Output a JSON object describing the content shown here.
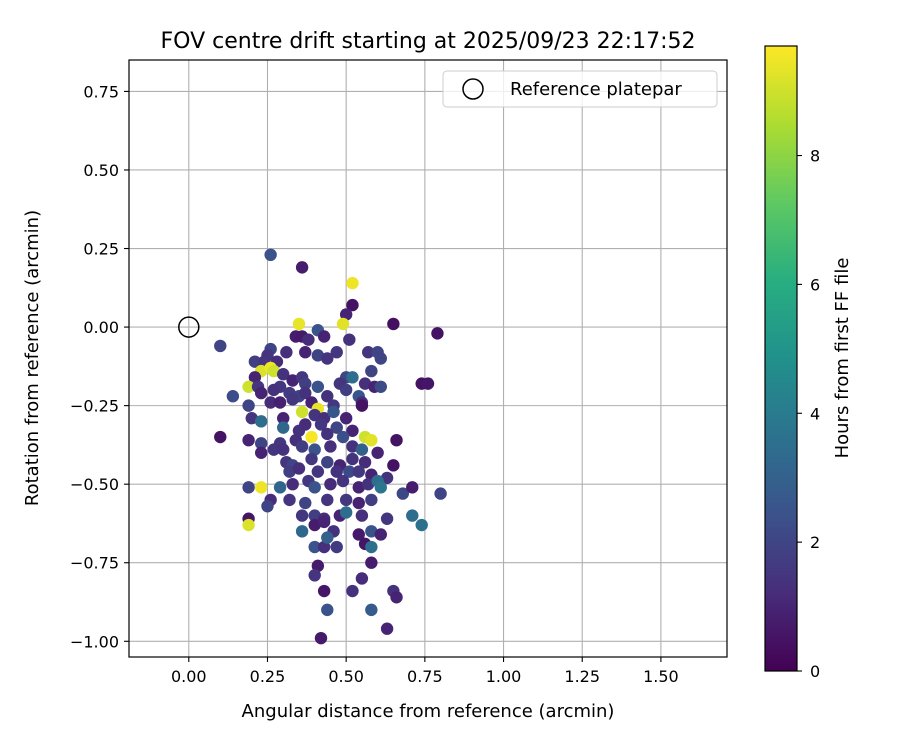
{
  "chart_data": {
    "type": "scatter",
    "title": "FOV centre drift starting at 2025/09/23 22:17:52",
    "xlabel": "Angular distance from reference (arcmin)",
    "ylabel": "Rotation from reference (arcmin)",
    "xlim": [
      -0.19,
      1.71
    ],
    "ylim": [
      -1.05,
      0.85
    ],
    "xticks": [
      0.0,
      0.25,
      0.5,
      0.75,
      1.0,
      1.25,
      1.5
    ],
    "xtick_labels": [
      "0.00",
      "0.25",
      "0.50",
      "0.75",
      "1.00",
      "1.25",
      "1.50"
    ],
    "yticks": [
      0.75,
      0.5,
      0.25,
      0.0,
      -0.25,
      -0.5,
      -0.75,
      -1.0
    ],
    "ytick_labels": [
      "0.75",
      "0.50",
      "0.25",
      "0.00",
      "−0.25",
      "−0.50",
      "−0.75",
      "−1.00"
    ],
    "grid": true,
    "legend": {
      "position": "top-right",
      "entries": [
        {
          "label": "Reference platepar",
          "marker": "open-circle"
        }
      ]
    },
    "reference_point": {
      "x": 0.0,
      "y": 0.0
    },
    "colorbar": {
      "label": "Hours from first FF file",
      "range": [
        0,
        9.7
      ],
      "ticks": [
        0,
        2,
        4,
        6,
        8
      ],
      "tick_labels": [
        "0",
        "2",
        "4",
        "6",
        "8"
      ],
      "colormap": "viridis"
    },
    "points": [
      [
        0.26,
        0.23,
        2.5
      ],
      [
        0.36,
        0.19,
        0.8
      ],
      [
        0.52,
        0.14,
        9.5
      ],
      [
        0.52,
        0.07,
        0.5
      ],
      [
        0.5,
        0.04,
        1.0
      ],
      [
        0.35,
        0.01,
        9.4
      ],
      [
        0.49,
        0.01,
        9.3
      ],
      [
        0.65,
        0.01,
        0.4
      ],
      [
        0.79,
        -0.02,
        0.5
      ],
      [
        0.41,
        -0.01,
        2.5
      ],
      [
        0.34,
        -0.03,
        0.8
      ],
      [
        0.36,
        -0.03,
        0.7
      ],
      [
        0.43,
        -0.03,
        1.0
      ],
      [
        0.38,
        -0.04,
        1.2
      ],
      [
        0.51,
        -0.04,
        1.4
      ],
      [
        0.1,
        -0.06,
        2.0
      ],
      [
        0.26,
        -0.07,
        2.0
      ],
      [
        0.25,
        -0.09,
        1.5
      ],
      [
        0.31,
        -0.08,
        1.3
      ],
      [
        0.37,
        -0.08,
        1.0
      ],
      [
        0.41,
        -0.09,
        2.0
      ],
      [
        0.47,
        -0.08,
        1.6
      ],
      [
        0.57,
        -0.08,
        1.5
      ],
      [
        0.6,
        -0.08,
        2.0
      ],
      [
        0.21,
        -0.11,
        1.8
      ],
      [
        0.24,
        -0.11,
        1.5
      ],
      [
        0.28,
        -0.11,
        1.2
      ],
      [
        0.44,
        -0.1,
        1.5
      ],
      [
        0.61,
        -0.1,
        2.0
      ],
      [
        0.23,
        -0.14,
        9.2
      ],
      [
        0.26,
        -0.13,
        9.5
      ],
      [
        0.27,
        -0.14,
        9.0
      ],
      [
        0.21,
        -0.16,
        1.0
      ],
      [
        0.3,
        -0.15,
        1.4
      ],
      [
        0.33,
        -0.17,
        1.0
      ],
      [
        0.36,
        -0.16,
        1.6
      ],
      [
        0.5,
        -0.16,
        2.0
      ],
      [
        0.52,
        -0.16,
        3.5
      ],
      [
        0.58,
        -0.14,
        2.0
      ],
      [
        0.74,
        -0.18,
        0.5
      ],
      [
        0.76,
        -0.18,
        0.6
      ],
      [
        0.19,
        -0.19,
        9.0
      ],
      [
        0.22,
        -0.19,
        1.5
      ],
      [
        0.29,
        -0.19,
        1.6
      ],
      [
        0.37,
        -0.18,
        1.8
      ],
      [
        0.41,
        -0.19,
        2.5
      ],
      [
        0.48,
        -0.18,
        1.5
      ],
      [
        0.56,
        -0.18,
        1.3
      ],
      [
        0.59,
        -0.19,
        1.0
      ],
      [
        0.61,
        -0.19,
        2.2
      ],
      [
        0.14,
        -0.22,
        2.3
      ],
      [
        0.23,
        -0.21,
        1.0
      ],
      [
        0.27,
        -0.2,
        1.4
      ],
      [
        0.32,
        -0.21,
        1.7
      ],
      [
        0.35,
        -0.22,
        1.9
      ],
      [
        0.37,
        -0.21,
        1.4
      ],
      [
        0.44,
        -0.22,
        1.4
      ],
      [
        0.5,
        -0.2,
        1.8
      ],
      [
        0.54,
        -0.22,
        2.6
      ],
      [
        0.19,
        -0.25,
        2.0
      ],
      [
        0.26,
        -0.24,
        1.2
      ],
      [
        0.29,
        -0.24,
        0.9
      ],
      [
        0.33,
        -0.23,
        1.6
      ],
      [
        0.39,
        -0.24,
        1.0
      ],
      [
        0.41,
        -0.26,
        9.4
      ],
      [
        0.46,
        -0.25,
        1.6
      ],
      [
        0.55,
        -0.24,
        1.2
      ],
      [
        0.55,
        -0.25,
        0.5
      ],
      [
        0.2,
        -0.29,
        1.5
      ],
      [
        0.23,
        -0.3,
        3.5
      ],
      [
        0.3,
        -0.29,
        1.0
      ],
      [
        0.36,
        -0.27,
        9.0
      ],
      [
        0.4,
        -0.28,
        1.5
      ],
      [
        0.43,
        -0.29,
        1.3
      ],
      [
        0.46,
        -0.27,
        2.6
      ],
      [
        0.5,
        -0.29,
        1.0
      ],
      [
        0.3,
        -0.32,
        3.3
      ],
      [
        0.35,
        -0.33,
        1.4
      ],
      [
        0.37,
        -0.31,
        1.2
      ],
      [
        0.42,
        -0.31,
        1.6
      ],
      [
        0.47,
        -0.32,
        2.0
      ],
      [
        0.52,
        -0.33,
        1.0
      ],
      [
        0.1,
        -0.35,
        0.5
      ],
      [
        0.19,
        -0.36,
        1.0
      ],
      [
        0.23,
        -0.37,
        2.0
      ],
      [
        0.29,
        -0.37,
        1.6
      ],
      [
        0.34,
        -0.36,
        1.3
      ],
      [
        0.39,
        -0.35,
        9.6
      ],
      [
        0.44,
        -0.34,
        1.4
      ],
      [
        0.49,
        -0.35,
        2.4
      ],
      [
        0.56,
        -0.35,
        9.0
      ],
      [
        0.58,
        -0.36,
        9.3
      ],
      [
        0.66,
        -0.36,
        0.5
      ],
      [
        0.23,
        -0.4,
        1.0
      ],
      [
        0.27,
        -0.39,
        1.5
      ],
      [
        0.3,
        -0.39,
        1.4
      ],
      [
        0.36,
        -0.38,
        1.8
      ],
      [
        0.4,
        -0.39,
        2.5
      ],
      [
        0.45,
        -0.38,
        1.3
      ],
      [
        0.52,
        -0.38,
        1.4
      ],
      [
        0.55,
        -0.39,
        3.0
      ],
      [
        0.6,
        -0.4,
        1.0
      ],
      [
        0.31,
        -0.43,
        1.5
      ],
      [
        0.33,
        -0.44,
        2.0
      ],
      [
        0.39,
        -0.42,
        1.6
      ],
      [
        0.44,
        -0.43,
        2.0
      ],
      [
        0.48,
        -0.44,
        1.0
      ],
      [
        0.52,
        -0.42,
        1.4
      ],
      [
        0.56,
        -0.43,
        1.2
      ],
      [
        0.65,
        -0.44,
        0.5
      ],
      [
        0.32,
        -0.46,
        1.8
      ],
      [
        0.35,
        -0.45,
        1.3
      ],
      [
        0.41,
        -0.46,
        1.5
      ],
      [
        0.47,
        -0.46,
        1.4
      ],
      [
        0.51,
        -0.46,
        2.2
      ],
      [
        0.54,
        -0.46,
        1.6
      ],
      [
        0.58,
        -0.47,
        1.0
      ],
      [
        0.63,
        -0.48,
        1.4
      ],
      [
        0.19,
        -0.51,
        2.0
      ],
      [
        0.23,
        -0.51,
        9.5
      ],
      [
        0.29,
        -0.51,
        3.2
      ],
      [
        0.33,
        -0.5,
        1.2
      ],
      [
        0.38,
        -0.49,
        1.6
      ],
      [
        0.4,
        -0.51,
        2.5
      ],
      [
        0.45,
        -0.5,
        1.2
      ],
      [
        0.49,
        -0.49,
        1.5
      ],
      [
        0.54,
        -0.51,
        1.0
      ],
      [
        0.57,
        -0.5,
        1.4
      ],
      [
        0.6,
        -0.49,
        3.5
      ],
      [
        0.61,
        -0.51,
        3.8
      ],
      [
        0.68,
        -0.53,
        2.1
      ],
      [
        0.71,
        -0.51,
        0.8
      ],
      [
        0.8,
        -0.53,
        2.0
      ],
      [
        0.26,
        -0.55,
        1.2
      ],
      [
        0.32,
        -0.55,
        1.5
      ],
      [
        0.37,
        -0.56,
        2.0
      ],
      [
        0.44,
        -0.55,
        1.5
      ],
      [
        0.5,
        -0.55,
        1.6
      ],
      [
        0.54,
        -0.56,
        1.0
      ],
      [
        0.58,
        -0.55,
        1.8
      ],
      [
        0.19,
        -0.61,
        0.6
      ],
      [
        0.25,
        -0.57,
        2.0
      ],
      [
        0.36,
        -0.6,
        1.6
      ],
      [
        0.4,
        -0.6,
        1.8
      ],
      [
        0.43,
        -0.61,
        1.2
      ],
      [
        0.48,
        -0.6,
        1.0
      ],
      [
        0.5,
        -0.59,
        3.5
      ],
      [
        0.55,
        -0.6,
        1.3
      ],
      [
        0.63,
        -0.61,
        1.5
      ],
      [
        0.71,
        -0.6,
        3.5
      ],
      [
        0.74,
        -0.63,
        3.6
      ],
      [
        0.19,
        -0.63,
        9.2
      ],
      [
        0.36,
        -0.65,
        3.3
      ],
      [
        0.4,
        -0.63,
        0.8
      ],
      [
        0.43,
        -0.62,
        1.0
      ],
      [
        0.46,
        -0.65,
        1.4
      ],
      [
        0.54,
        -0.66,
        0.7
      ],
      [
        0.58,
        -0.65,
        2.5
      ],
      [
        0.61,
        -0.66,
        1.0
      ],
      [
        0.4,
        -0.7,
        2.5
      ],
      [
        0.43,
        -0.7,
        1.3
      ],
      [
        0.47,
        -0.7,
        1.7
      ],
      [
        0.56,
        -0.69,
        0.6
      ],
      [
        0.58,
        -0.7,
        3.6
      ],
      [
        0.44,
        -0.67,
        3.0
      ],
      [
        0.41,
        -0.76,
        0.7
      ],
      [
        0.58,
        -0.75,
        0.8
      ],
      [
        0.4,
        -0.79,
        1.5
      ],
      [
        0.55,
        -0.8,
        1.2
      ],
      [
        0.43,
        -0.84,
        0.6
      ],
      [
        0.52,
        -0.84,
        1.4
      ],
      [
        0.65,
        -0.84,
        1.4
      ],
      [
        0.66,
        -0.86,
        1.0
      ],
      [
        0.44,
        -0.9,
        2.5
      ],
      [
        0.58,
        -0.9,
        2.8
      ],
      [
        0.63,
        -0.96,
        1.0
      ],
      [
        0.42,
        -0.99,
        0.7
      ]
    ]
  }
}
